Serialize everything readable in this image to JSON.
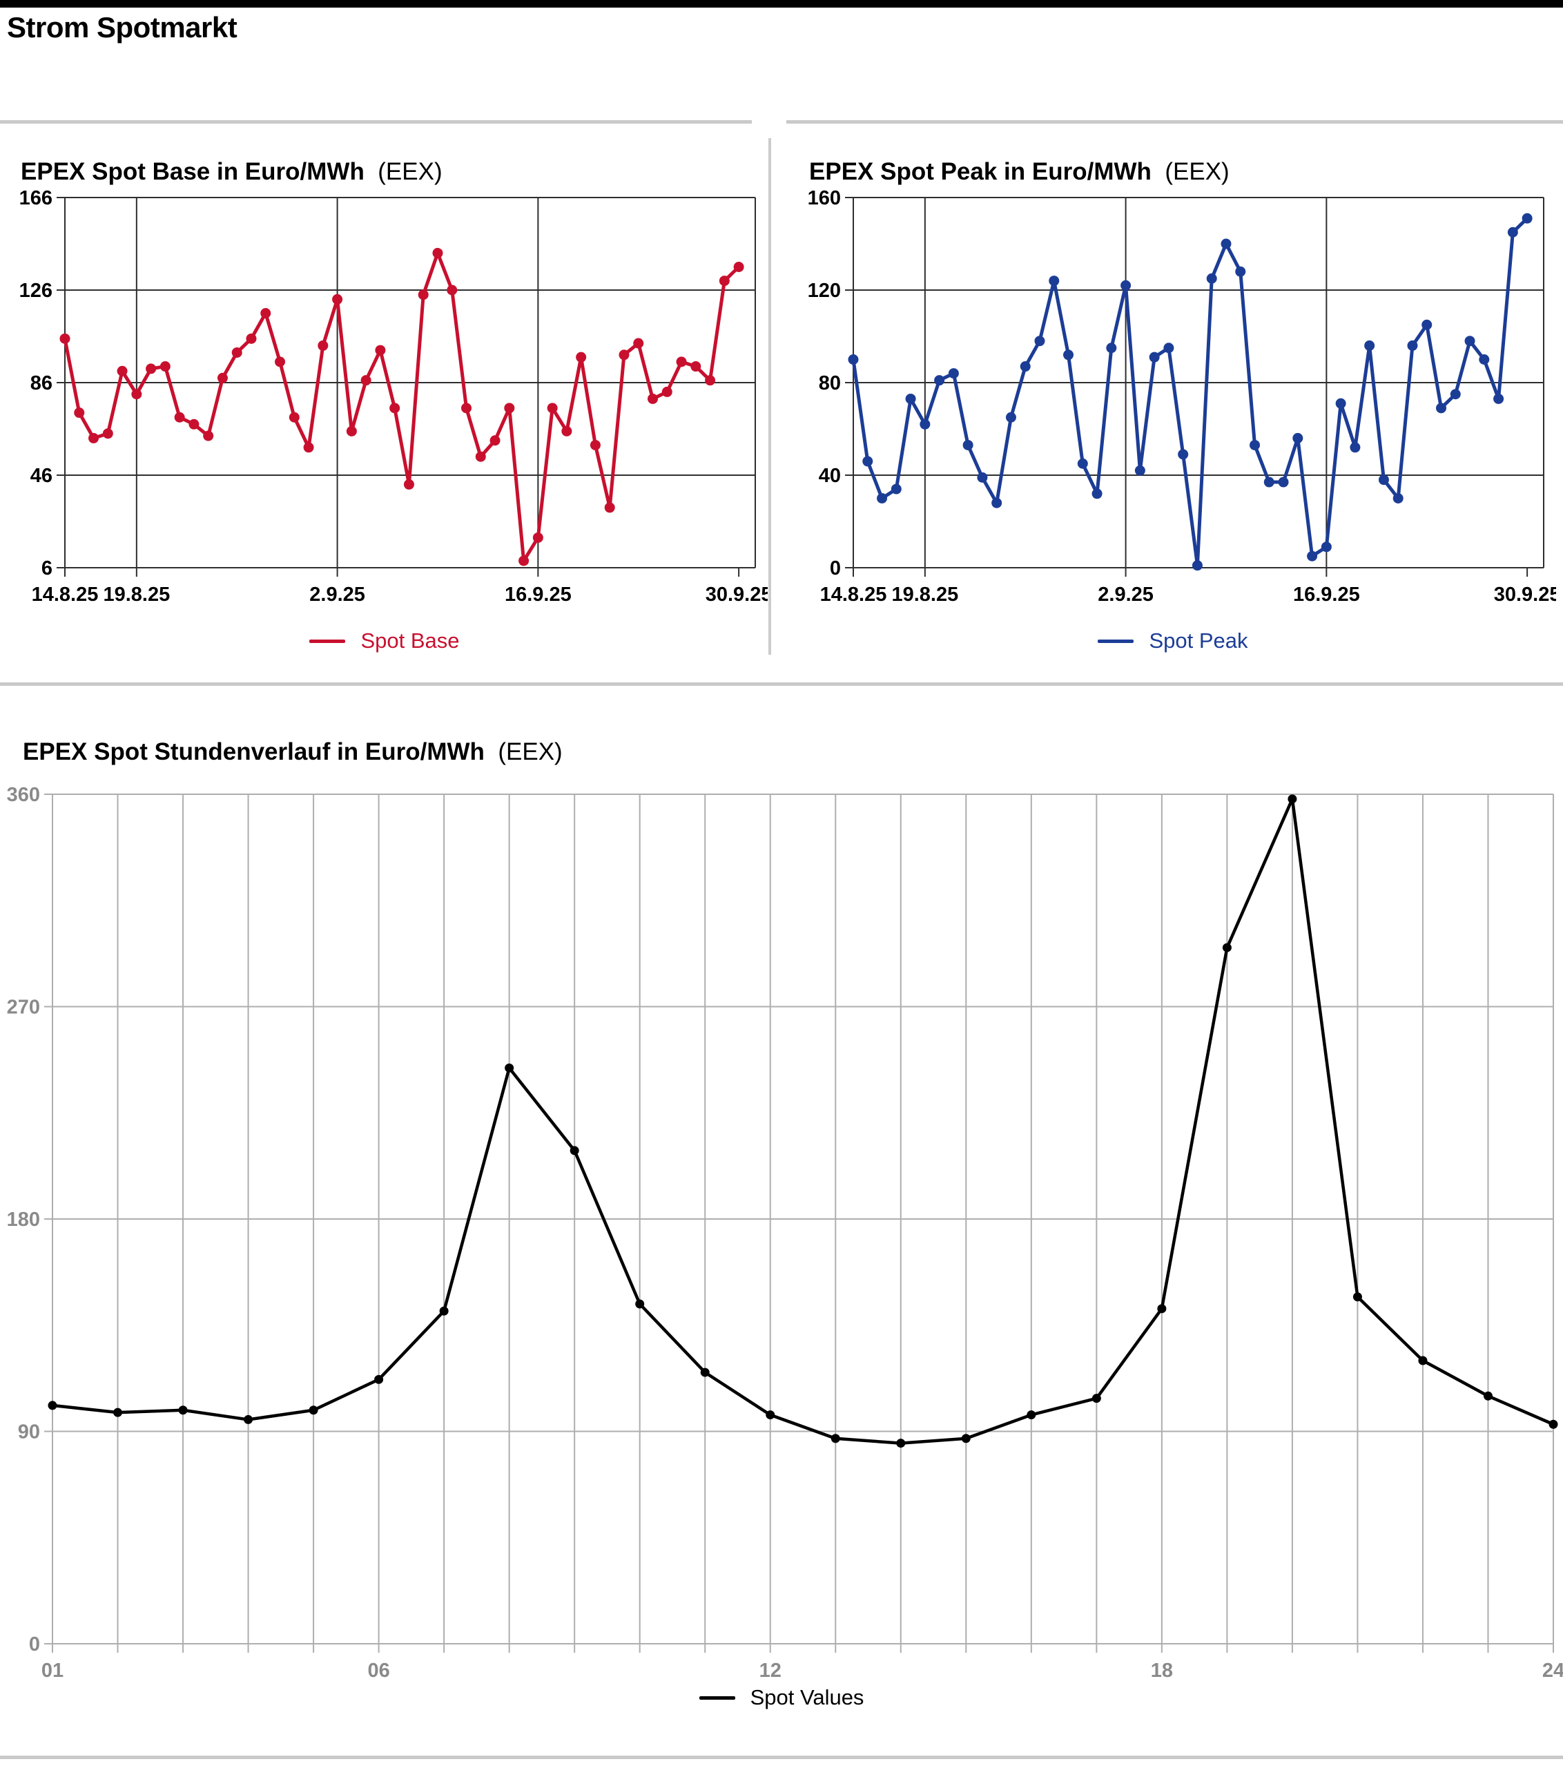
{
  "page": {
    "title": "Strom Spotmarkt"
  },
  "chart_data": [
    {
      "type": "line",
      "title": "EPEX Spot Base in Euro/MWh",
      "title_suffix": "(EEX)",
      "legend": "Spot Base",
      "color": "#C8102E",
      "ylabel": "",
      "xlabel": "",
      "ylim": [
        6,
        166
      ],
      "yticks": [
        6,
        46,
        86,
        126,
        166
      ],
      "grid_x": [
        5,
        19,
        33
      ],
      "xticks": [
        [
          0,
          "14.8.25"
        ],
        [
          5,
          "19.8.25"
        ],
        [
          19,
          "2.9.25"
        ],
        [
          33,
          "16.9.25"
        ],
        [
          47,
          "30.9.25"
        ]
      ],
      "categories": [
        "14.8.25",
        "15.8.25",
        "16.8.25",
        "17.8.25",
        "18.8.25",
        "19.8.25",
        "20.8.25",
        "21.8.25",
        "22.8.25",
        "23.8.25",
        "24.8.25",
        "25.8.25",
        "26.8.25",
        "27.8.25",
        "28.8.25",
        "29.8.25",
        "30.8.25",
        "31.8.25",
        "1.9.25",
        "2.9.25",
        "3.9.25",
        "4.9.25",
        "5.9.25",
        "6.9.25",
        "7.9.25",
        "8.9.25",
        "9.9.25",
        "10.9.25",
        "11.9.25",
        "12.9.25",
        "13.9.25",
        "14.9.25",
        "15.9.25",
        "16.9.25",
        "17.9.25",
        "18.9.25",
        "19.9.25",
        "20.9.25",
        "21.9.25",
        "22.9.25",
        "23.9.25",
        "24.9.25",
        "25.9.25",
        "26.9.25",
        "27.9.25",
        "28.9.25",
        "29.9.25",
        "30.9.25"
      ],
      "values": [
        105,
        73,
        62,
        64,
        91,
        81,
        92,
        93,
        71,
        68,
        63,
        88,
        99,
        105,
        116,
        95,
        71,
        58,
        102,
        122,
        65,
        87,
        100,
        75,
        42,
        124,
        142,
        126,
        75,
        54,
        61,
        75,
        9,
        19,
        75,
        65,
        97,
        59,
        32,
        98,
        103,
        79,
        82,
        95,
        93,
        87,
        130,
        136
      ]
    },
    {
      "type": "line",
      "title": "EPEX Spot Peak in Euro/MWh",
      "title_suffix": "(EEX)",
      "legend": "Spot Peak",
      "color": "#1C3D96",
      "ylabel": "",
      "xlabel": "",
      "ylim": [
        0,
        160
      ],
      "yticks": [
        0,
        40,
        80,
        120,
        160
      ],
      "grid_x": [
        5,
        19,
        33
      ],
      "xticks": [
        [
          0,
          "14.8.25"
        ],
        [
          5,
          "19.8.25"
        ],
        [
          19,
          "2.9.25"
        ],
        [
          33,
          "16.9.25"
        ],
        [
          47,
          "30.9.25"
        ]
      ],
      "categories": [
        "14.8.25",
        "15.8.25",
        "16.8.25",
        "17.8.25",
        "18.8.25",
        "19.8.25",
        "20.8.25",
        "21.8.25",
        "22.8.25",
        "23.8.25",
        "24.8.25",
        "25.8.25",
        "26.8.25",
        "27.8.25",
        "28.8.25",
        "29.8.25",
        "30.8.25",
        "31.8.25",
        "1.9.25",
        "2.9.25",
        "3.9.25",
        "4.9.25",
        "5.9.25",
        "6.9.25",
        "7.9.25",
        "8.9.25",
        "9.9.25",
        "10.9.25",
        "11.9.25",
        "12.9.25",
        "13.9.25",
        "14.9.25",
        "15.9.25",
        "16.9.25",
        "17.9.25",
        "18.9.25",
        "19.9.25",
        "20.9.25",
        "21.9.25",
        "22.9.25",
        "23.9.25",
        "24.9.25",
        "25.9.25",
        "26.9.25",
        "27.9.25",
        "28.9.25",
        "29.9.25",
        "30.9.25"
      ],
      "values": [
        90,
        46,
        30,
        34,
        73,
        62,
        81,
        84,
        53,
        39,
        28,
        65,
        87,
        98,
        124,
        92,
        45,
        32,
        95,
        122,
        42,
        91,
        95,
        49,
        1,
        125,
        140,
        128,
        53,
        37,
        37,
        56,
        5,
        9,
        71,
        52,
        96,
        38,
        30,
        96,
        105,
        69,
        75,
        98,
        90,
        73,
        145,
        151
      ]
    },
    {
      "type": "line",
      "title": "EPEX Spot Stundenverlauf in Euro/MWh",
      "title_suffix": "(EEX)",
      "legend": "Spot Values",
      "color": "#000000",
      "ylabel": "",
      "xlabel": "",
      "ylim": [
        0,
        360
      ],
      "yticks": [
        0,
        90,
        180,
        270,
        360
      ],
      "grid_x": "all",
      "xticks": [
        [
          0,
          "01"
        ],
        [
          5,
          "06"
        ],
        [
          11,
          "12"
        ],
        [
          17,
          "18"
        ],
        [
          23,
          "24"
        ]
      ],
      "categories": [
        "01",
        "02",
        "03",
        "04",
        "05",
        "06",
        "07",
        "08",
        "09",
        "10",
        "11",
        "12",
        "13",
        "14",
        "15",
        "16",
        "17",
        "18",
        "19",
        "20",
        "21",
        "22",
        "23",
        "24"
      ],
      "values": [
        101,
        98,
        99,
        95,
        99,
        112,
        141,
        244,
        209,
        144,
        115,
        97,
        87,
        85,
        87,
        97,
        104,
        142,
        295,
        358,
        147,
        120,
        105,
        93
      ]
    }
  ]
}
